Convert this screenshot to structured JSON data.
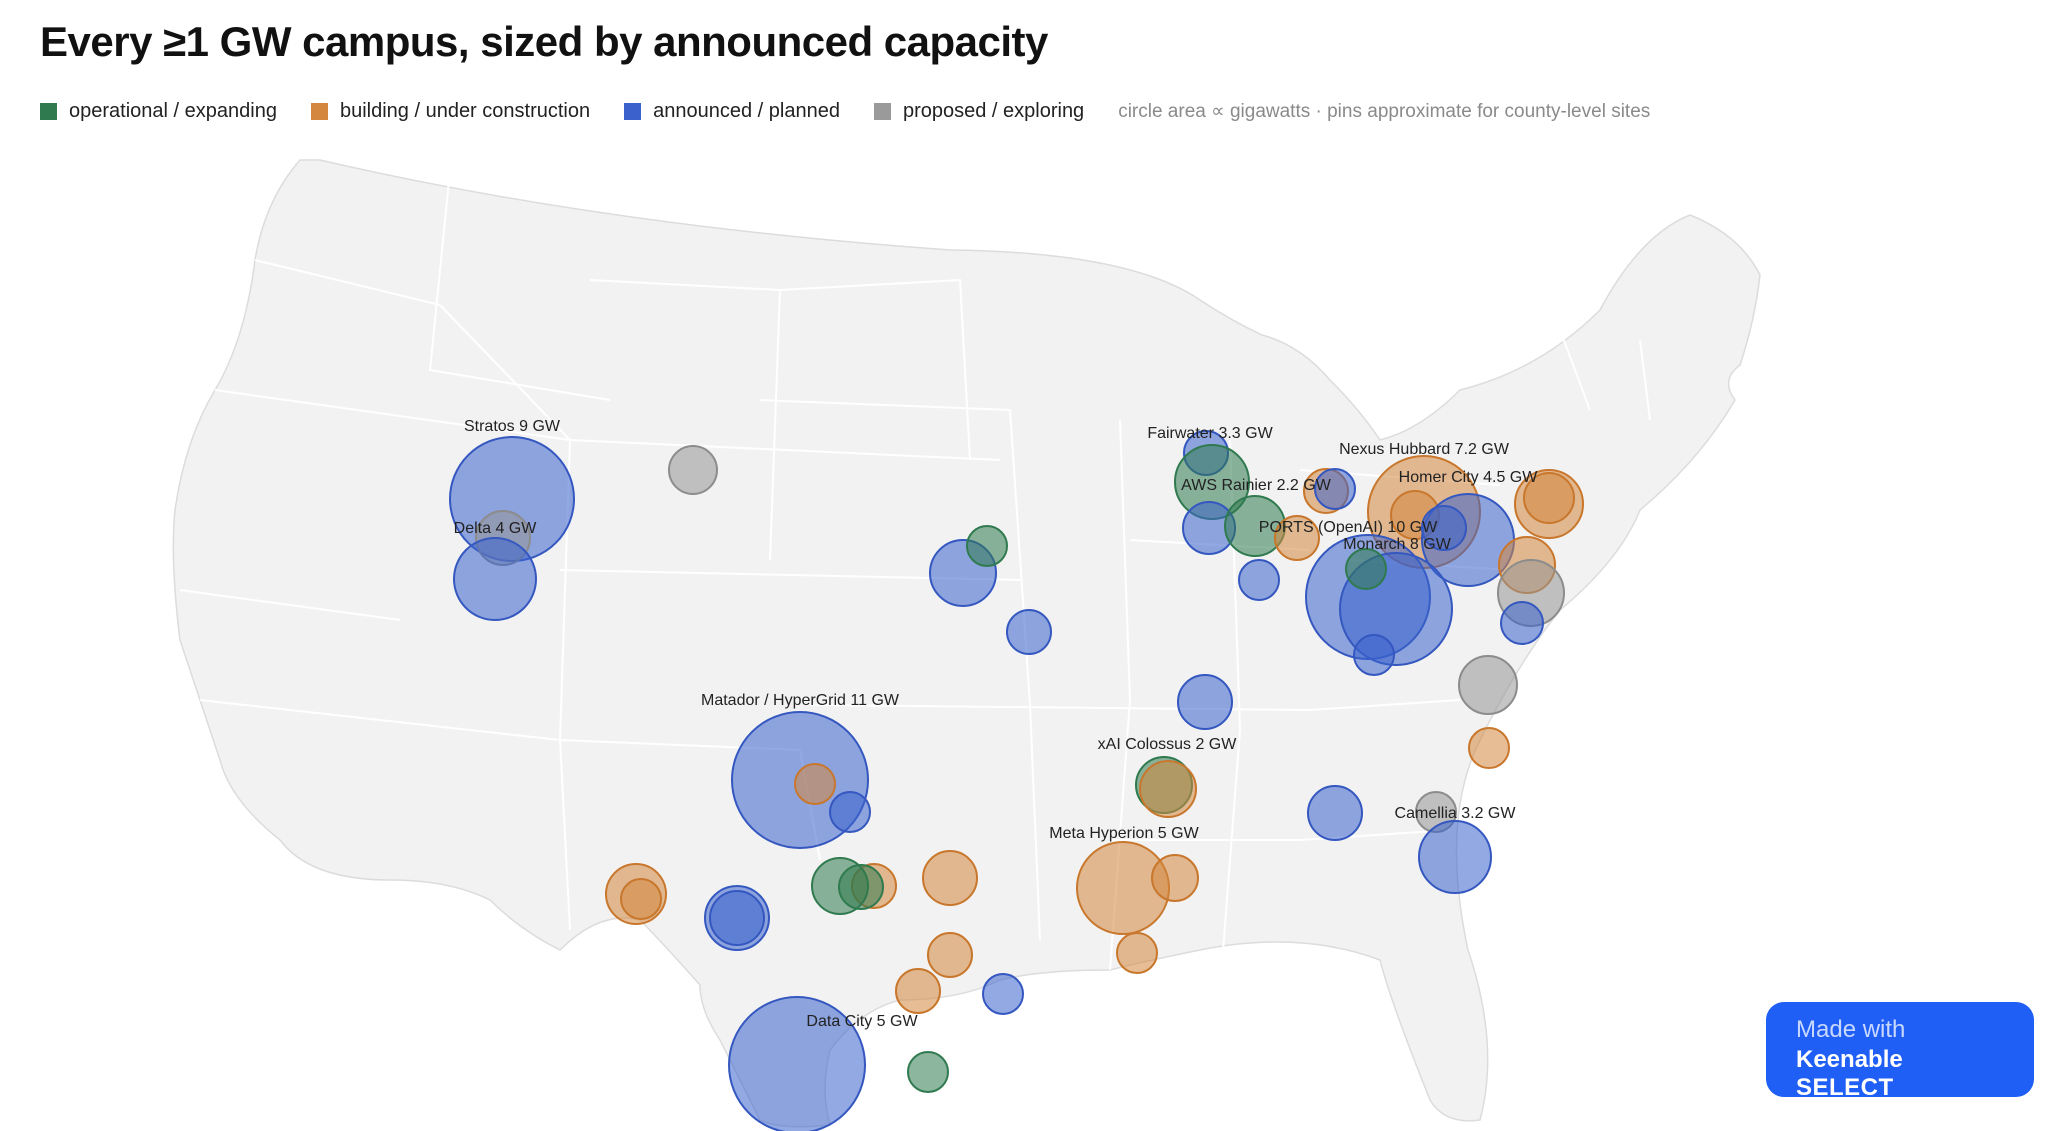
{
  "title": "Every ≥1 GW campus, sized by announced capacity",
  "legend": [
    {
      "label": "operational / expanding",
      "color": "#2f7a4e"
    },
    {
      "label": "building / under construction",
      "color": "#d4873e"
    },
    {
      "label": "announced / planned",
      "color": "#3b62cc"
    },
    {
      "label": "proposed / exploring",
      "color": "#9a9a9a"
    }
  ],
  "note": "circle area ∝ gigawatts · pins approximate for county-level sites",
  "badge": {
    "line1": "Made with",
    "brand": "Keenable",
    "product": "SELECT"
  },
  "labels": [
    {
      "text": "Stratos 9 GW"
    },
    {
      "text": "Delta 4 GW"
    },
    {
      "text": "Fairwater 3.3 GW"
    },
    {
      "text": "AWS Rainier 2.2 GW"
    },
    {
      "text": "Nexus Hubbard 7.2 GW"
    },
    {
      "text": "Homer City 4.5 GW"
    },
    {
      "text": "PORTS (OpenAI) 10 GW"
    },
    {
      "text": "Monarch 8 GW"
    },
    {
      "text": "Matador / HyperGrid 11 GW"
    },
    {
      "text": "xAI Colossus 2 GW"
    },
    {
      "text": "Meta Hyperion 5 GW"
    },
    {
      "text": "Camellia 3.2 GW"
    },
    {
      "text": "Data City 5 GW"
    }
  ]
}
